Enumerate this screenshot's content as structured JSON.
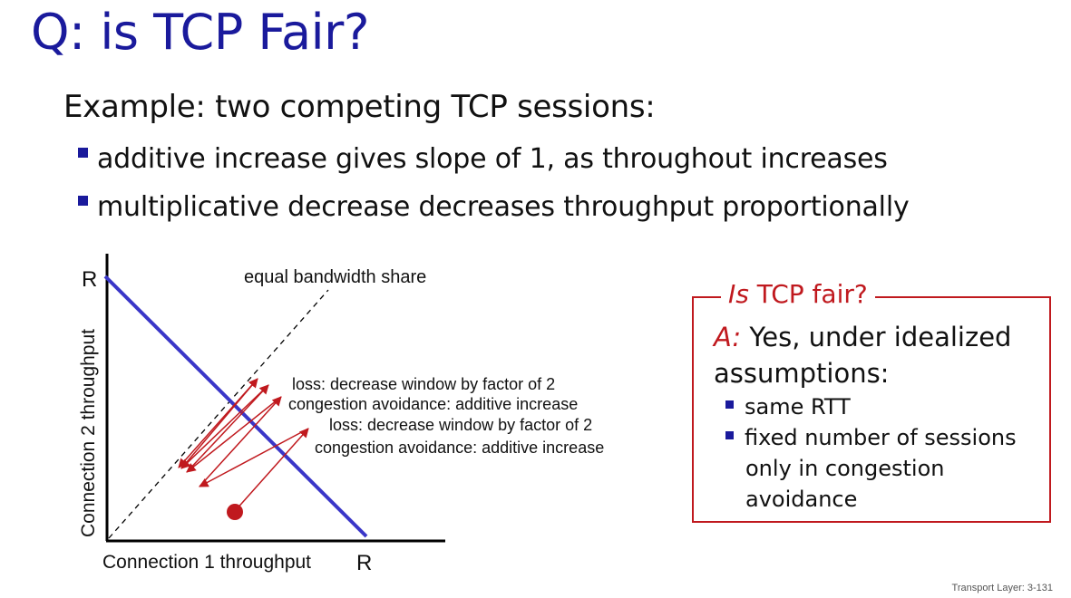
{
  "slide": {
    "title": "Q: is TCP Fair?",
    "example": "Example: two competing TCP sessions:",
    "bullets": [
      "additive increase gives slope of 1, as throughout increases",
      "multiplicative decrease decreases throughput proportionally"
    ],
    "footer": "Transport Layer: 3-131"
  },
  "diagram": {
    "y_axis_label": "Connection 2 throughput",
    "x_axis_label": "Connection 1 throughput",
    "y_max_label": "R",
    "x_max_label": "R",
    "equal_share_label": "equal bandwidth share",
    "annotations": [
      "loss: decrease window by factor of 2",
      "congestion avoidance: additive increase",
      "loss: decrease window by factor of 2",
      "congestion avoidance: additive increase"
    ],
    "colors": {
      "capacity_line": "#3a36c8",
      "arrows": "#c0191e",
      "start_point": "#c0191e"
    }
  },
  "box": {
    "legend_italic": "Is",
    "legend_rest": " TCP fair?",
    "answer_label": "A:",
    "answer_text": " Yes, under idealized assumptions:",
    "items": [
      "same RTT",
      "fixed number of sessions only in congestion avoidance"
    ]
  }
}
